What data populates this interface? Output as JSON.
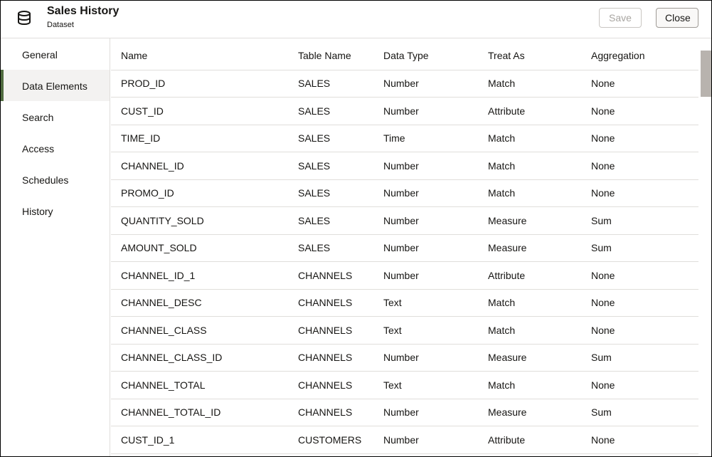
{
  "header": {
    "title": "Sales History",
    "subtitle": "Dataset",
    "icon": "database-icon",
    "save_label": "Save",
    "close_label": "Close"
  },
  "sidebar": {
    "items": [
      {
        "label": "General"
      },
      {
        "label": "Data Elements",
        "selected": true
      },
      {
        "label": "Search"
      },
      {
        "label": "Access"
      },
      {
        "label": "Schedules"
      },
      {
        "label": "History"
      }
    ]
  },
  "table": {
    "columns": [
      "Name",
      "Table Name",
      "Data Type",
      "Treat As",
      "Aggregation"
    ],
    "rows": [
      [
        "PROD_ID",
        "SALES",
        "Number",
        "Match",
        "None"
      ],
      [
        "CUST_ID",
        "SALES",
        "Number",
        "Attribute",
        "None"
      ],
      [
        "TIME_ID",
        "SALES",
        "Time",
        "Match",
        "None"
      ],
      [
        "CHANNEL_ID",
        "SALES",
        "Number",
        "Match",
        "None"
      ],
      [
        "PROMO_ID",
        "SALES",
        "Number",
        "Match",
        "None"
      ],
      [
        "QUANTITY_SOLD",
        "SALES",
        "Number",
        "Measure",
        "Sum"
      ],
      [
        "AMOUNT_SOLD",
        "SALES",
        "Number",
        "Measure",
        "Sum"
      ],
      [
        "CHANNEL_ID_1",
        "CHANNELS",
        "Number",
        "Attribute",
        "None"
      ],
      [
        "CHANNEL_DESC",
        "CHANNELS",
        "Text",
        "Match",
        "None"
      ],
      [
        "CHANNEL_CLASS",
        "CHANNELS",
        "Text",
        "Match",
        "None"
      ],
      [
        "CHANNEL_CLASS_ID",
        "CHANNELS",
        "Number",
        "Measure",
        "Sum"
      ],
      [
        "CHANNEL_TOTAL",
        "CHANNELS",
        "Text",
        "Match",
        "None"
      ],
      [
        "CHANNEL_TOTAL_ID",
        "CHANNELS",
        "Number",
        "Measure",
        "Sum"
      ],
      [
        "CUST_ID_1",
        "CUSTOMERS",
        "Number",
        "Attribute",
        "None"
      ]
    ]
  },
  "colors": {
    "accent": "#4f6b3f",
    "selected_bg": "#f3f2f1"
  }
}
